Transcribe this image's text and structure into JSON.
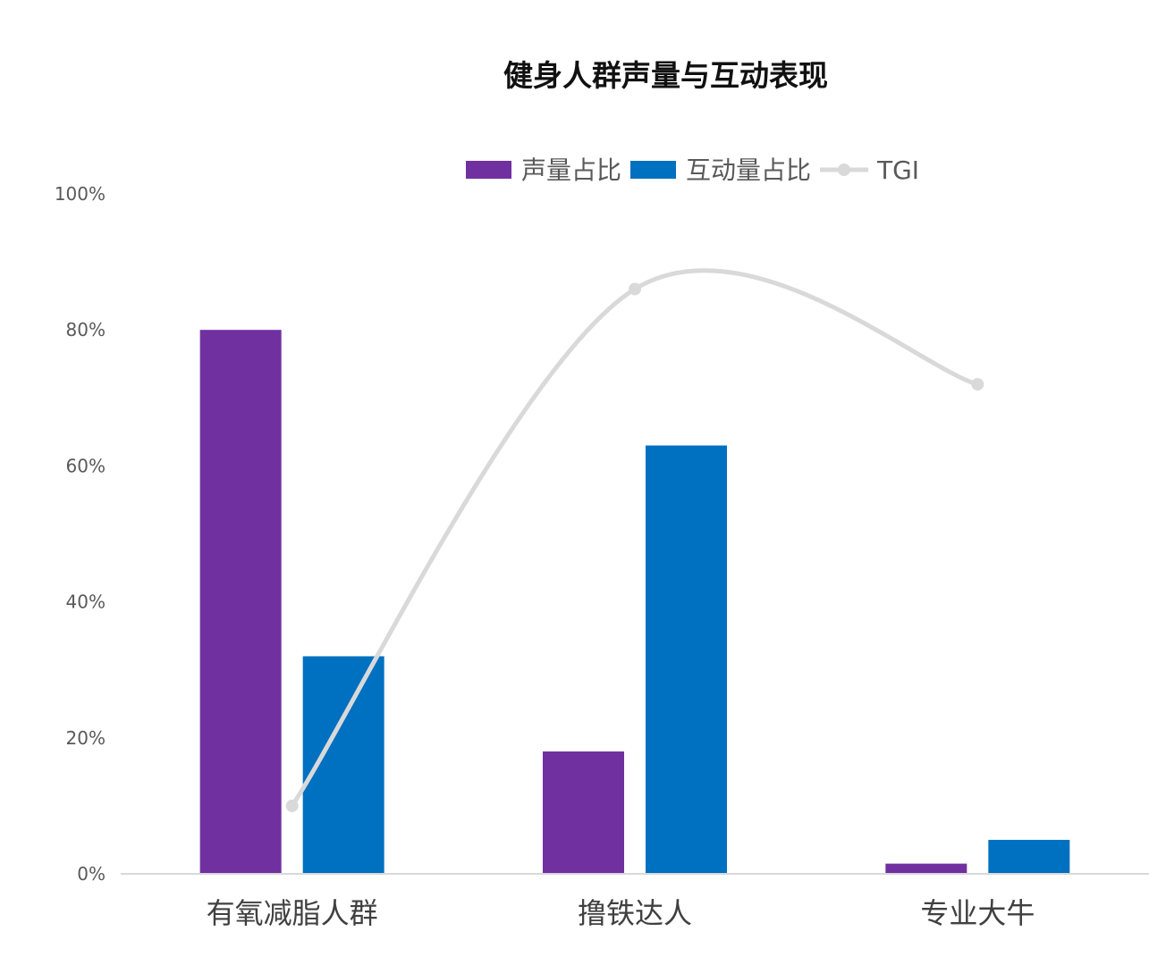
{
  "chart_data": {
    "type": "bar",
    "title": "健身人群声量与互动表现",
    "categories": [
      "有氧减脂人群",
      "撸铁达人",
      "专业大牛"
    ],
    "series": [
      {
        "name": "声量占比",
        "type": "bar",
        "color": "#7030A0",
        "values": [
          80,
          18,
          1.5
        ]
      },
      {
        "name": "互动量占比",
        "type": "bar",
        "color": "#0070C0",
        "values": [
          32,
          63,
          5
        ]
      },
      {
        "name": "TGI",
        "type": "line",
        "color": "#D9D9D9",
        "smooth": true,
        "values": [
          10,
          86,
          72
        ]
      }
    ],
    "y_axis": {
      "min": 0,
      "max": 100,
      "step": 20,
      "tick_labels": [
        "0%",
        "20%",
        "40%",
        "60%",
        "80%",
        "100%"
      ]
    },
    "gridlines": false,
    "legend_position": "top"
  }
}
